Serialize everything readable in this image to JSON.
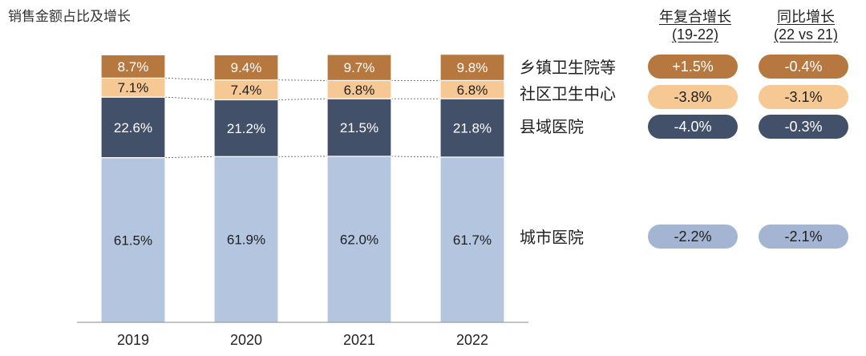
{
  "title": "销售金额占比及增长",
  "chart_data": {
    "type": "bar",
    "stacked": true,
    "percent": true,
    "categories": [
      "2019",
      "2020",
      "2021",
      "2022"
    ],
    "series": [
      {
        "name": "城市医院",
        "values": [
          61.5,
          61.9,
          62.0,
          61.7
        ],
        "color": "#b4c5df",
        "text_color": "#1e1e1e",
        "labels": [
          "61.5%",
          "61.9%",
          "62.0%",
          "61.7%"
        ]
      },
      {
        "name": "县域医院",
        "values": [
          22.6,
          21.2,
          21.5,
          21.8
        ],
        "color": "#43506a",
        "text_color": "#ffffff",
        "labels": [
          "22.6%",
          "21.2%",
          "21.5%",
          "21.8%"
        ]
      },
      {
        "name": "社区卫生中心",
        "values": [
          7.1,
          7.4,
          6.8,
          6.8
        ],
        "color": "#f5c894",
        "text_color": "#1e1e1e",
        "labels": [
          "7.1%",
          "7.4%",
          "6.8%",
          "6.8%"
        ]
      },
      {
        "name": "乡镇卫生院等",
        "values": [
          8.7,
          9.4,
          9.7,
          9.8
        ],
        "color": "#b7783f",
        "text_color": "#ffffff",
        "labels": [
          "8.7%",
          "9.4%",
          "9.7%",
          "9.8%"
        ]
      }
    ],
    "ylim": [
      0,
      100
    ],
    "connector_lines": true
  },
  "growth_table": {
    "columns": [
      {
        "line1": "年复合增长",
        "line2": "(19-22)"
      },
      {
        "line1": "同比增长",
        "line2": "(22 vs 21)"
      }
    ],
    "rows": [
      {
        "segment": "乡镇卫生院等",
        "cagr": "+1.5%",
        "yoy": "-0.4%"
      },
      {
        "segment": "社区卫生中心",
        "cagr": "-3.8%",
        "yoy": "-3.1%"
      },
      {
        "segment": "县域医院",
        "cagr": "-4.0%",
        "yoy": "-0.3%"
      },
      {
        "segment": "城市医院",
        "cagr": "-2.2%",
        "yoy": "-2.1%"
      }
    ]
  }
}
